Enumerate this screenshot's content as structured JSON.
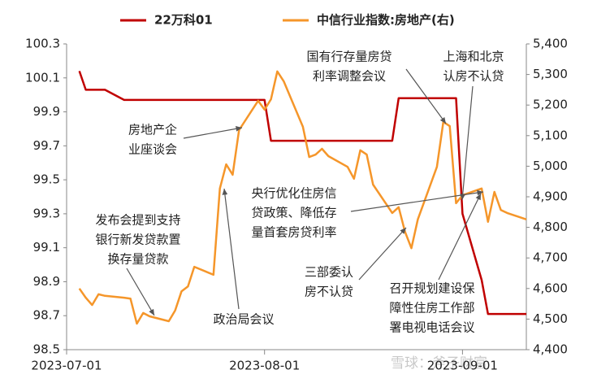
{
  "chart_data": {
    "type": "line",
    "x": [
      "2023-07-03",
      "2023-07-04",
      "2023-07-05",
      "2023-07-06",
      "2023-07-07",
      "2023-07-10",
      "2023-07-11",
      "2023-07-12",
      "2023-07-13",
      "2023-07-14",
      "2023-07-17",
      "2023-07-18",
      "2023-07-19",
      "2023-07-20",
      "2023-07-21",
      "2023-07-24",
      "2023-07-25",
      "2023-07-26",
      "2023-07-27",
      "2023-07-28",
      "2023-07-31",
      "2023-08-01",
      "2023-08-02",
      "2023-08-03",
      "2023-08-04",
      "2023-08-07",
      "2023-08-08",
      "2023-08-09",
      "2023-08-10",
      "2023-08-11",
      "2023-08-14",
      "2023-08-15",
      "2023-08-16",
      "2023-08-17",
      "2023-08-18",
      "2023-08-21",
      "2023-08-22",
      "2023-08-23",
      "2023-08-24",
      "2023-08-25",
      "2023-08-28",
      "2023-08-29",
      "2023-08-30",
      "2023-08-31",
      "2023-09-01",
      "2023-09-04",
      "2023-09-05",
      "2023-09-06",
      "2023-09-07",
      "2023-09-08",
      "2023-09-11"
    ],
    "series": [
      {
        "name": "22万科01",
        "color": "#c00000",
        "axis": "y",
        "values": [
          100.14,
          100.03,
          100.03,
          100.03,
          100.03,
          99.97,
          99.97,
          99.97,
          99.97,
          99.97,
          99.97,
          99.97,
          99.97,
          99.97,
          99.97,
          99.97,
          99.97,
          99.97,
          99.97,
          99.97,
          99.97,
          99.97,
          99.73,
          99.73,
          99.73,
          99.73,
          99.73,
          99.73,
          99.73,
          99.73,
          99.73,
          99.73,
          99.73,
          99.73,
          99.73,
          99.73,
          99.98,
          99.98,
          99.98,
          99.98,
          99.98,
          99.98,
          99.98,
          99.98,
          99.3,
          98.91,
          98.71,
          98.71,
          98.71,
          98.71,
          98.71
        ]
      },
      {
        "name": "中信行业指数:房地产(右)",
        "color": "#f5962a",
        "axis": "y2",
        "values": [
          4600,
          4570,
          4546,
          4581,
          4576,
          4570,
          4567,
          4485,
          4520,
          4509,
          4493,
          4528,
          4591,
          4607,
          4671,
          4645,
          4927,
          5006,
          4972,
          5118,
          5214,
          5185,
          5219,
          5310,
          5278,
          5129,
          5030,
          5038,
          5057,
          5033,
          4998,
          4959,
          5052,
          5038,
          4940,
          4847,
          4866,
          4786,
          4732,
          4826,
          4998,
          5145,
          5131,
          4879,
          4905,
          4927,
          4818,
          4916,
          4857,
          4847,
          4826
        ]
      }
    ],
    "xlim": [
      "2023-07-01",
      "2023-09-11"
    ],
    "xticks": [
      "2023-07-01",
      "2023-08-01",
      "2023-09-01"
    ],
    "ylim": [
      98.5,
      100.3
    ],
    "yticks": [
      98.5,
      98.7,
      98.9,
      99.1,
      99.3,
      99.5,
      99.7,
      99.9,
      100.1,
      100.3
    ],
    "y2lim": [
      4400,
      5400
    ],
    "y2ticks": [
      {
        "value": 4400,
        "label": "4,400"
      },
      {
        "value": 4500,
        "label": "4,500"
      },
      {
        "value": 4600,
        "label": "4,600"
      },
      {
        "value": 4700,
        "label": "4,700"
      },
      {
        "value": 4800,
        "label": "4,800"
      },
      {
        "value": 4900,
        "label": "4,900"
      },
      {
        "value": 5000,
        "label": "5,000"
      },
      {
        "value": 5100,
        "label": "5,100"
      },
      {
        "value": 5200,
        "label": "5,200"
      },
      {
        "value": 5300,
        "label": "5,300"
      },
      {
        "value": 5400,
        "label": "5,400"
      }
    ],
    "grid": false,
    "legend": "top",
    "annotations": [
      {
        "lines": [
          "房地产企",
          "业座谈会"
        ]
      },
      {
        "lines": [
          "发布会提到支持",
          "银行新发贷款置",
          "换存量贷款"
        ]
      },
      {
        "lines": [
          "政治局会议"
        ]
      },
      {
        "lines": [
          "国有行存量房贷",
          "利率调整会议"
        ]
      },
      {
        "lines": [
          "上海和北京",
          "认房不认贷"
        ]
      },
      {
        "lines": [
          "央行优化住房信",
          "贷政策、降低存",
          "量首套房贷利率"
        ]
      },
      {
        "lines": [
          "三部委认",
          "房不认贷"
        ]
      },
      {
        "lines": [
          "召开规划建设保",
          "障性住房工作部",
          "署电视电话会议"
        ]
      }
    ],
    "watermark": "雪球：斧子财富"
  }
}
